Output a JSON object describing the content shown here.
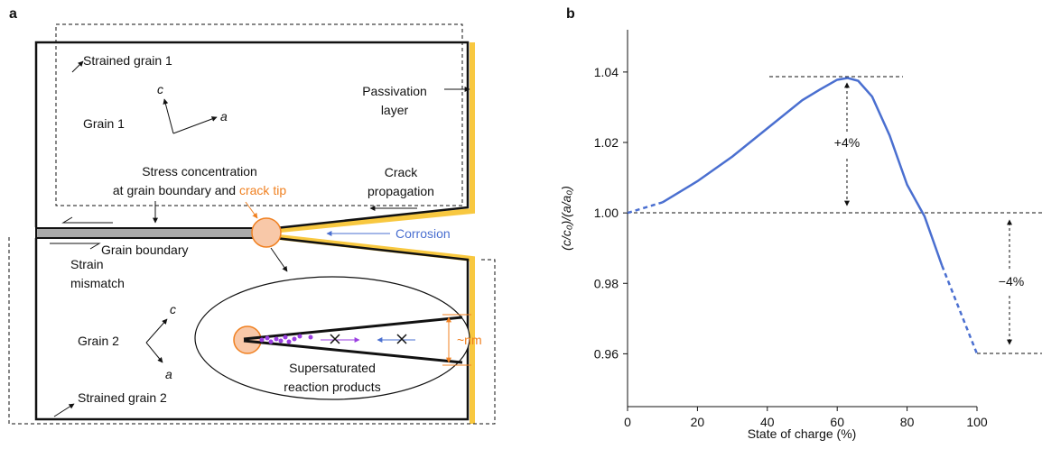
{
  "panel_a": {
    "label": "a",
    "strained_grain_1": "Strained grain 1",
    "grain_1": "Grain 1",
    "axis_c_1": "c",
    "axis_a_1": "a",
    "passivation_layer": [
      "Passivation",
      "layer"
    ],
    "stress_concentration": [
      "Stress concentration",
      "at grain boundary and ",
      "crack tip"
    ],
    "crack_propagation": [
      "Crack",
      "propagation"
    ],
    "corrosion": "Corrosion",
    "grain_boundary": "Grain boundary",
    "strain_mismatch": [
      "Strain",
      "mismatch"
    ],
    "grain_2": "Grain 2",
    "axis_c_2": "c",
    "axis_a_2": "a",
    "nm": "~nm",
    "reaction_products": [
      "Supersaturated",
      "reaction products"
    ],
    "strained_grain_2": "Strained grain 2"
  },
  "chart_data": {
    "type": "line",
    "panel_label": "b",
    "xlabel": "State of charge (%)",
    "ylabel": "(c/c₀)/(a/a₀)",
    "x": [
      0,
      10,
      20,
      30,
      40,
      50,
      55,
      60,
      63,
      66,
      70,
      75,
      80,
      85,
      90,
      100
    ],
    "values": [
      1.0,
      1.003,
      1.009,
      1.016,
      1.024,
      1.032,
      1.035,
      1.0378,
      1.0383,
      1.0375,
      1.033,
      1.022,
      1.008,
      0.999,
      0.985,
      0.96
    ],
    "solid_range": [
      10,
      90
    ],
    "color": "#4a6fd0",
    "xlim": [
      0,
      100
    ],
    "xticks": [
      0,
      20,
      40,
      60,
      80,
      100
    ],
    "ylim": [
      0.945,
      1.052
    ],
    "yticks": [
      0.96,
      0.98,
      {
        "value": 1,
        "label": "1.00"
      },
      1.02,
      1.04
    ],
    "annotations": [
      "+4%",
      "−4%"
    ]
  }
}
